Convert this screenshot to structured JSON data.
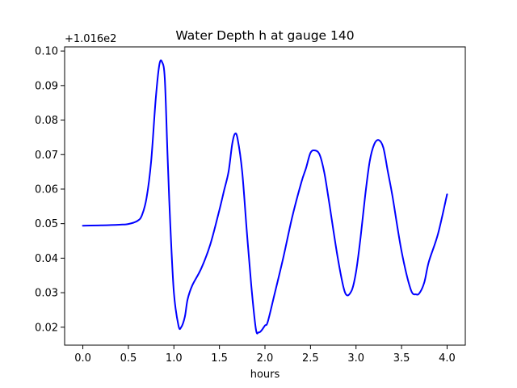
{
  "chart_data": {
    "type": "line",
    "title": "Water Depth h at gauge 140",
    "xlabel": "hours",
    "ylabel": "",
    "y_offset_label": "+1.016e2",
    "y_offset": 101.6,
    "xlim": [
      -0.2,
      4.2
    ],
    "ylim": [
      0.0148,
      0.1012
    ],
    "grid": false,
    "line_color": "#0000ff",
    "x_ticks": [
      0.0,
      0.5,
      1.0,
      1.5,
      2.0,
      2.5,
      3.0,
      3.5,
      4.0
    ],
    "x_tick_labels": [
      "0.0",
      "0.5",
      "1.0",
      "1.5",
      "2.0",
      "2.5",
      "3.0",
      "3.5",
      "4.0"
    ],
    "y_ticks": [
      0.02,
      0.03,
      0.04,
      0.05,
      0.06,
      0.07,
      0.08,
      0.09,
      0.1
    ],
    "y_tick_labels": [
      "0.02",
      "0.03",
      "0.04",
      "0.05",
      "0.06",
      "0.07",
      "0.08",
      "0.09",
      "0.10"
    ],
    "series": [
      {
        "x": [
          0.0,
          0.2,
          0.4,
          0.5,
          0.6,
          0.65,
          0.7,
          0.75,
          0.8,
          0.84,
          0.87,
          0.9,
          0.93,
          0.96,
          1.0,
          1.05,
          1.08,
          1.12,
          1.15,
          1.2,
          1.3,
          1.4,
          1.5,
          1.55,
          1.6,
          1.64,
          1.67,
          1.7,
          1.75,
          1.8,
          1.85,
          1.9,
          1.93,
          1.96,
          2.0,
          2.03,
          2.1,
          2.2,
          2.3,
          2.4,
          2.45,
          2.5,
          2.55,
          2.6,
          2.65,
          2.7,
          2.8,
          2.88,
          2.95,
          3.0,
          3.05,
          3.1,
          3.15,
          3.2,
          3.25,
          3.3,
          3.35,
          3.4,
          3.5,
          3.6,
          3.66,
          3.7,
          3.75,
          3.8,
          3.9,
          4.0
        ],
        "y": [
          0.0494,
          0.0495,
          0.0497,
          0.0499,
          0.0508,
          0.0525,
          0.0575,
          0.068,
          0.086,
          0.096,
          0.0968,
          0.092,
          0.07,
          0.05,
          0.03,
          0.0205,
          0.02,
          0.023,
          0.028,
          0.032,
          0.037,
          0.044,
          0.054,
          0.0595,
          0.065,
          0.073,
          0.076,
          0.0745,
          0.065,
          0.048,
          0.032,
          0.0195,
          0.0185,
          0.019,
          0.0205,
          0.0215,
          0.029,
          0.04,
          0.052,
          0.062,
          0.066,
          0.0705,
          0.0712,
          0.07,
          0.065,
          0.057,
          0.04,
          0.03,
          0.0305,
          0.036,
          0.046,
          0.058,
          0.068,
          0.073,
          0.0742,
          0.072,
          0.065,
          0.058,
          0.042,
          0.031,
          0.0295,
          0.03,
          0.033,
          0.039,
          0.047,
          0.0585
        ]
      }
    ]
  }
}
